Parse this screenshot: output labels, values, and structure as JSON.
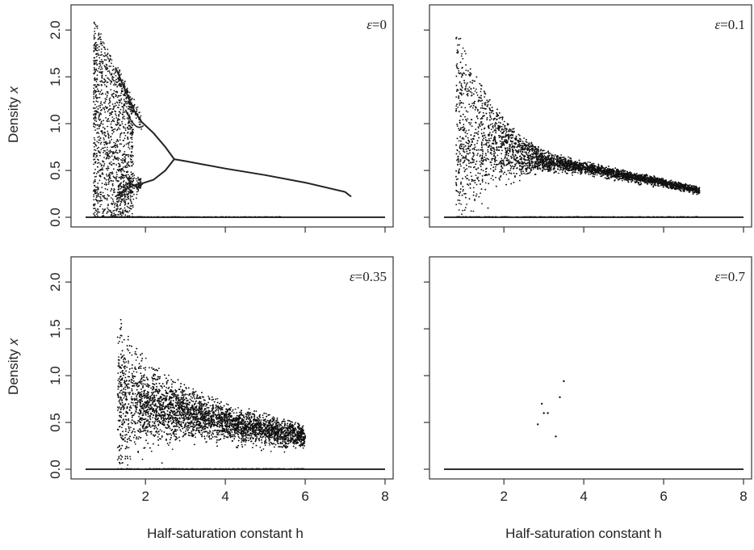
{
  "figure": {
    "x_axis_label": "Half-saturation constant h",
    "y_axis_label": "Density x",
    "y_axis_label_text": "Density ",
    "y_axis_label_var": "x"
  },
  "chart_data": [
    {
      "type": "scatter",
      "panel": "top-left",
      "annotation": "ε=0",
      "epsilon_symbol": "ε",
      "epsilon_value": "=0",
      "xlim": [
        0.5,
        8
      ],
      "ylim": [
        0,
        2.2
      ],
      "xticks": [
        2,
        4,
        6,
        8
      ],
      "xtick_labels": [],
      "yticks": [
        0,
        0.5,
        1.0,
        1.5,
        2.0
      ],
      "ytick_labels": [
        "0.0",
        "0.5",
        "1.0",
        "1.5",
        "2.0"
      ],
      "pattern": "period-doubling bifurcation with deterministic branches; chaotic cloud for h≈0.7–1.5",
      "series": [
        {
          "role": "upper_branch",
          "x": [
            0.75,
            1.0,
            1.25,
            1.5,
            1.7,
            1.9,
            2.2,
            2.5,
            2.72
          ],
          "y": [
            2.1,
            1.85,
            1.6,
            1.35,
            1.15,
            1.02,
            0.9,
            0.75,
            0.62
          ]
        },
        {
          "role": "lower_branch",
          "x": [
            0.75,
            1.0,
            1.25,
            1.5,
            1.7,
            1.9,
            2.2,
            2.5,
            2.72
          ],
          "y": [
            0.02,
            0.12,
            0.22,
            0.3,
            0.34,
            0.36,
            0.4,
            0.5,
            0.62
          ]
        },
        {
          "role": "stable_equilibrium",
          "x": [
            2.72,
            3,
            4,
            5,
            6,
            7,
            7.15
          ],
          "y": [
            0.62,
            0.6,
            0.52,
            0.45,
            0.37,
            0.27,
            0.22
          ]
        },
        {
          "role": "extinction",
          "x": [
            0.5,
            8
          ],
          "y": [
            0,
            0
          ]
        }
      ]
    },
    {
      "type": "scatter",
      "panel": "top-right",
      "annotation": "ε=0.1",
      "epsilon_symbol": "ε",
      "epsilon_value": "=0.1",
      "xlim": [
        0.5,
        8
      ],
      "ylim": [
        0,
        2.2
      ],
      "xticks": [
        2,
        4,
        6,
        8
      ],
      "xtick_labels": [],
      "yticks": [
        0,
        0.5,
        1.0,
        1.5,
        2.0
      ],
      "ytick_labels": [],
      "pattern": "noisy bifurcation cloud from h≈0.8 narrowing to a band ending near h≈6.9",
      "series": [
        {
          "role": "band_center",
          "x": [
            0.8,
            1.0,
            1.5,
            2.0,
            2.5,
            3.0,
            4.0,
            5.0,
            6.0,
            6.9
          ],
          "y": [
            1.0,
            0.95,
            0.85,
            0.75,
            0.66,
            0.6,
            0.53,
            0.45,
            0.37,
            0.28
          ]
        },
        {
          "role": "band_max",
          "x": [
            0.8,
            1.0,
            1.5,
            2.0,
            2.5,
            3.0,
            4.0,
            6.0,
            6.9
          ],
          "y": [
            2.0,
            1.85,
            1.4,
            1.05,
            0.85,
            0.72,
            0.6,
            0.42,
            0.32
          ]
        },
        {
          "role": "extinction",
          "x": [
            0.5,
            8
          ],
          "y": [
            0,
            0
          ]
        }
      ]
    },
    {
      "type": "scatter",
      "panel": "bottom-left",
      "annotation": "ε=0.35",
      "epsilon_symbol": "ε",
      "epsilon_value": "=0.35",
      "xlim": [
        0.5,
        8
      ],
      "ylim": [
        0,
        2.2
      ],
      "xticks": [
        2,
        4,
        6,
        8
      ],
      "xtick_labels": [
        "2",
        "4",
        "6",
        "8"
      ],
      "yticks": [
        0,
        0.5,
        1.0,
        1.5,
        2.0
      ],
      "ytick_labels": [
        "0.0",
        "0.5",
        "1.0",
        "1.5",
        "2.0"
      ],
      "pattern": "diffuse cloud from h≈1.3 to h≈6.0",
      "series": [
        {
          "role": "band_center",
          "x": [
            1.3,
            2.0,
            3.0,
            4.0,
            5.0,
            6.0
          ],
          "y": [
            0.75,
            0.7,
            0.6,
            0.5,
            0.42,
            0.35
          ]
        },
        {
          "role": "band_max",
          "x": [
            1.3,
            1.5,
            2.0,
            3.0,
            4.0,
            5.0,
            6.0
          ],
          "y": [
            1.77,
            1.5,
            1.2,
            0.9,
            0.72,
            0.6,
            0.48
          ]
        },
        {
          "role": "extinction",
          "x": [
            0.5,
            8
          ],
          "y": [
            0,
            0
          ]
        }
      ]
    },
    {
      "type": "scatter",
      "panel": "bottom-right",
      "annotation": "ε=0.7",
      "epsilon_symbol": "ε",
      "epsilon_value": "=0.7",
      "xlim": [
        0.5,
        8
      ],
      "ylim": [
        0,
        2.2
      ],
      "xticks": [
        2,
        4,
        6,
        8
      ],
      "xtick_labels": [
        "2",
        "4",
        "6",
        "8"
      ],
      "yticks": [
        0,
        0.5,
        1.0,
        1.5,
        2.0
      ],
      "ytick_labels": [],
      "pattern": "nearly all extinct; a few isolated points",
      "series": [
        {
          "role": "isolated_points",
          "x": [
            2.85,
            2.95,
            3.0,
            3.1,
            3.3,
            3.4,
            3.5
          ],
          "y": [
            0.48,
            0.7,
            0.6,
            0.6,
            0.35,
            0.77,
            0.94
          ]
        },
        {
          "role": "extinction",
          "x": [
            0.5,
            8
          ],
          "y": [
            0,
            0
          ]
        }
      ]
    }
  ]
}
